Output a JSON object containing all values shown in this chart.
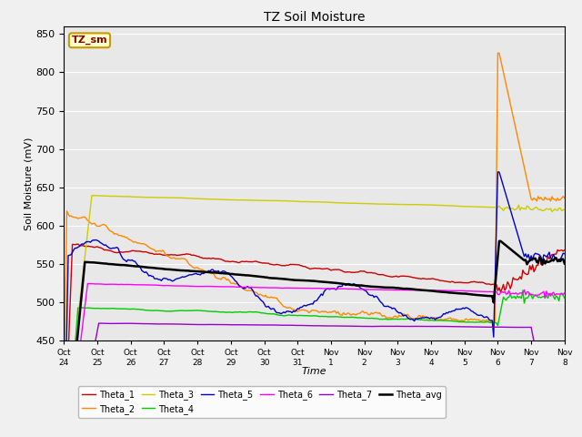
{
  "title": "TZ Soil Moisture",
  "xlabel": "Time",
  "ylabel": "Soil Moisture (mV)",
  "ylim": [
    450,
    860
  ],
  "yticks": [
    450,
    500,
    550,
    600,
    650,
    700,
    750,
    800,
    850
  ],
  "bg_color": "#e8e8e8",
  "legend_label": "TZ_sm",
  "x_labels": [
    "Oct 24",
    "Oct 25",
    "Oct 26",
    "Oct 27",
    "Oct 28",
    "Oct 29",
    "Oct 30",
    "Oct 31",
    "Nov 1",
    "Nov 2",
    "Nov 3",
    "Nov 4",
    "Nov 5",
    "Nov 6",
    "Nov 7",
    "Nov 8"
  ],
  "colors": {
    "Theta_1": "#cc0000",
    "Theta_2": "#ff8800",
    "Theta_3": "#cccc00",
    "Theta_4": "#00cc00",
    "Theta_5": "#0000cc",
    "Theta_6": "#ff00ff",
    "Theta_7": "#9900cc",
    "Theta_avg": "#000000"
  },
  "figsize": [
    6.4,
    4.8
  ],
  "dpi": 100
}
